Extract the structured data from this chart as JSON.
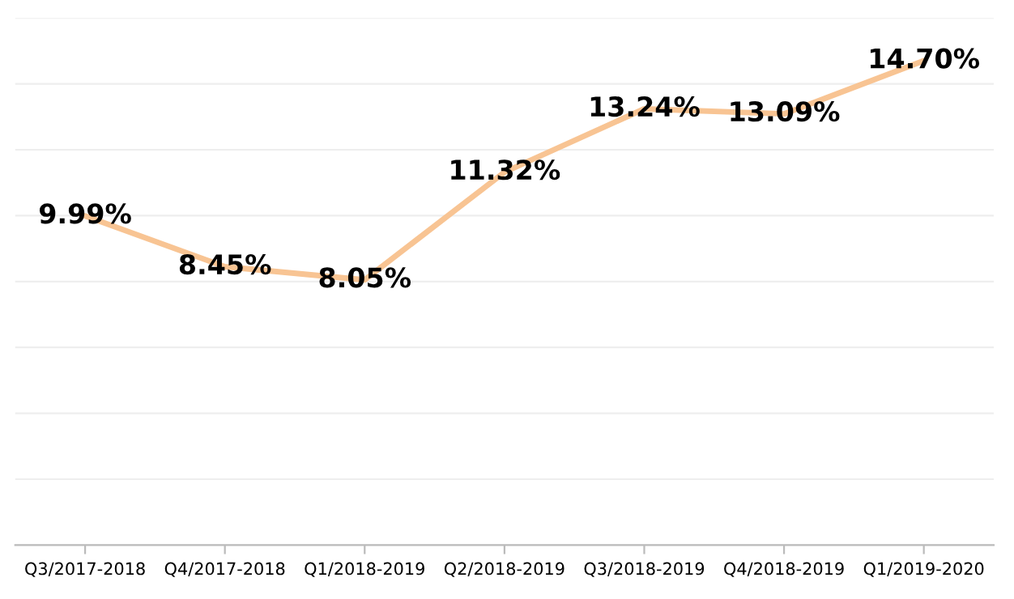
{
  "chart_data": {
    "type": "line",
    "categories": [
      "Q3/2017-2018",
      "Q4/2017-2018",
      "Q1/2018-2019",
      "Q2/2018-2019",
      "Q3/2018-2019",
      "Q4/2018-2019",
      "Q1/2019-2020"
    ],
    "series": [
      {
        "color": "#f8c493",
        "values": [
          9.99,
          8.45,
          8.05,
          11.32,
          13.24,
          13.09,
          14.7
        ],
        "value_labels": [
          "9.99%",
          "8.45%",
          "8.05%",
          "11.32%",
          "13.24%",
          "13.09%",
          "14.70%"
        ]
      }
    ],
    "ylim": [
      0,
      16
    ],
    "yticks": [
      {
        "value": 0,
        "label": null
      },
      {
        "value": 2,
        "label": null
      },
      {
        "value": 4,
        "label": null
      },
      {
        "value": 6,
        "label": null
      },
      {
        "value": 8,
        "label": null
      },
      {
        "value": 10,
        "label": null
      },
      {
        "value": 12,
        "label": null
      },
      {
        "value": 14,
        "label": null
      },
      {
        "value": 16,
        "label": null
      }
    ],
    "grid": "y",
    "tick_labels": "x",
    "marker": "none",
    "line_style": "solid",
    "legend": false
  }
}
